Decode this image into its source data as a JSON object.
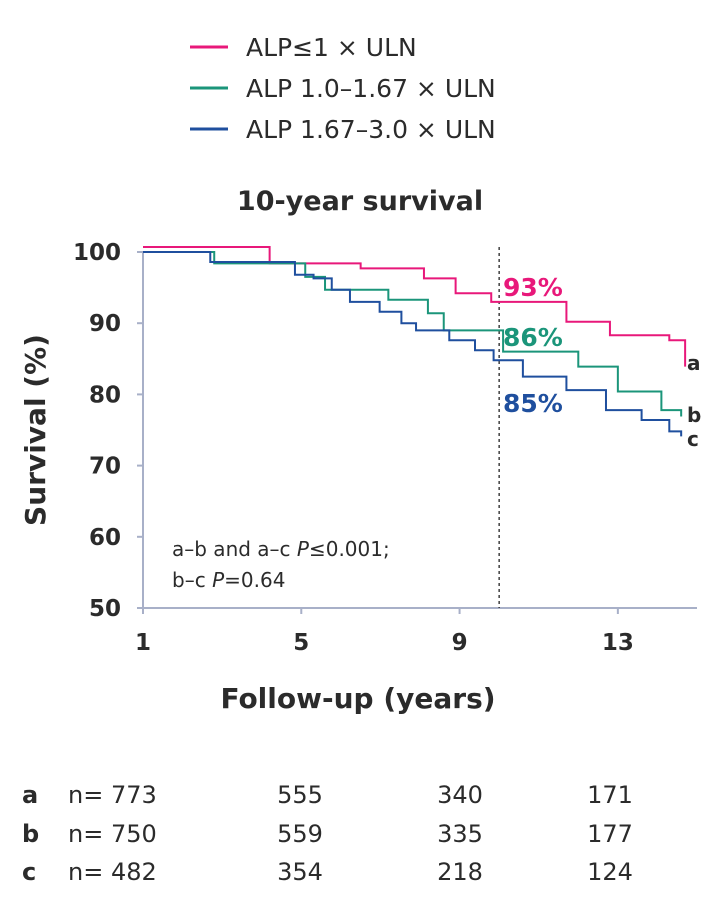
{
  "chart_data": {
    "type": "line",
    "subtype": "kaplan-meier step",
    "title": "10-year survival",
    "xlabel": "Follow-up (years)",
    "ylabel": "Survival (%)",
    "xlim": [
      1,
      15
    ],
    "ylim": [
      50,
      100
    ],
    "xticks": [
      "1",
      "5",
      "9",
      "13"
    ],
    "yticks": [
      "100",
      "90",
      "80",
      "70",
      "60",
      "50"
    ],
    "grid": false,
    "legend_position": "top",
    "reference_line": {
      "x": 10,
      "style": "dashed"
    },
    "series": [
      {
        "name": "ALP≤1 × ULN",
        "id": "a",
        "color": "#e8187a",
        "label_at_10y": "93%",
        "x": [
          1,
          4.2,
          6.5,
          8.1,
          8.9,
          9.8,
          10.9,
          11.7,
          12.8,
          14.3,
          14.7
        ],
        "y": [
          100.7,
          98.4,
          97.7,
          96.3,
          94.2,
          93.0,
          93.0,
          90.2,
          88.3,
          87.6,
          83.9
        ]
      },
      {
        "name": "ALP 1.0–1.67 × ULN",
        "id": "b",
        "color": "#1b957a",
        "label_at_10y": "86%",
        "x": [
          1,
          2.8,
          5.1,
          5.6,
          7.2,
          8.2,
          8.6,
          10.1,
          12.0,
          13.0,
          14.1,
          14.6
        ],
        "y": [
          100.0,
          98.4,
          96.5,
          94.7,
          93.3,
          91.4,
          89.0,
          86.0,
          83.9,
          80.4,
          77.8,
          76.9
        ]
      },
      {
        "name": "ALP 1.67–3.0 × ULN",
        "id": "c",
        "color": "#1f4f9e",
        "label_at_10y": "85%",
        "x": [
          1,
          2.7,
          4.84,
          5.31,
          5.77,
          6.23,
          6.98,
          7.53,
          7.9,
          8.74,
          9.39,
          9.86,
          10.6,
          11.7,
          12.7,
          13.6,
          14.3,
          14.6
        ],
        "y": [
          100.0,
          98.6,
          96.8,
          96.3,
          94.7,
          93.0,
          91.6,
          90.0,
          89.0,
          87.6,
          86.2,
          84.8,
          82.5,
          80.6,
          77.8,
          76.4,
          74.8,
          74.1
        ]
      }
    ],
    "annotation": {
      "line1_pre": "a–b and a–c ",
      "line1_italic": "P",
      "line1_post": "≤0.001;",
      "line2_pre": "b–c ",
      "line2_italic": "P",
      "line2_post": "=0.64"
    },
    "risk_table": {
      "rows": [
        {
          "id": "a",
          "first": "n= 773",
          "values": [
            "555",
            "340",
            "171"
          ]
        },
        {
          "id": "b",
          "first": "n= 750",
          "values": [
            "559",
            "335",
            "177"
          ]
        },
        {
          "id": "c",
          "first": "n= 482",
          "values": [
            "354",
            "218",
            "124"
          ]
        }
      ]
    }
  },
  "colors": {
    "axis": "#a8b0c8",
    "text": "#2b2b2b"
  }
}
